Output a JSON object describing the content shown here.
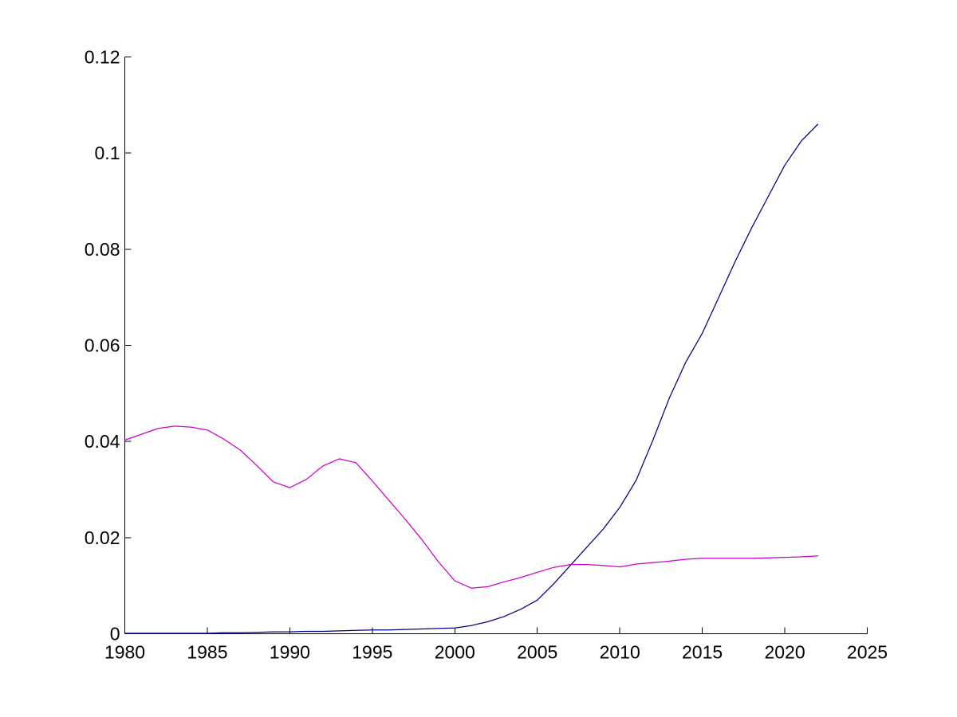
{
  "figure": {
    "background_color": "#ffffff",
    "axis_color": "#000000",
    "tick_label_color": "#000000"
  },
  "chart_data": {
    "type": "line",
    "title": "",
    "xlabel": "",
    "ylabel": "",
    "xlim": [
      1980,
      2025
    ],
    "ylim": [
      0,
      0.12
    ],
    "grid": false,
    "legend": "none",
    "x_ticks": [
      1980,
      1985,
      1990,
      1995,
      2000,
      2005,
      2010,
      2015,
      2020,
      2025
    ],
    "x_tick_labels": [
      "1980",
      "1985",
      "1990",
      "1995",
      "2000",
      "2005",
      "2010",
      "2015",
      "2020",
      "2025"
    ],
    "y_ticks": [
      0,
      0.02,
      0.04,
      0.06,
      0.08,
      0.1,
      0.12
    ],
    "y_tick_labels": [
      "0",
      "0.02",
      "0.04",
      "0.06",
      "0.08",
      "0.1",
      "0.12"
    ],
    "x": [
      1980,
      1981,
      1982,
      1983,
      1984,
      1985,
      1986,
      1987,
      1988,
      1989,
      1990,
      1991,
      1992,
      1993,
      1994,
      1995,
      1996,
      1997,
      1998,
      1999,
      2000,
      2001,
      2002,
      2003,
      2004,
      2005,
      2006,
      2007,
      2008,
      2009,
      2010,
      2011,
      2012,
      2013,
      2014,
      2015,
      2016,
      2017,
      2018,
      2019,
      2020,
      2021,
      2022
    ],
    "series": [
      {
        "name": "blue",
        "color": "#000080",
        "values": [
          0.0001,
          0.0001,
          0.0001,
          0.0001,
          0.0001,
          0.0001,
          0.0002,
          0.0002,
          0.0003,
          0.0004,
          0.0004,
          0.0005,
          0.0005,
          0.0006,
          0.0007,
          0.0008,
          0.0008,
          0.0009,
          0.001,
          0.0011,
          0.0012,
          0.0017,
          0.0025,
          0.0036,
          0.0051,
          0.007,
          0.0104,
          0.0142,
          0.018,
          0.0218,
          0.0263,
          0.032,
          0.0402,
          0.049,
          0.0565,
          0.0625,
          0.07,
          0.0775,
          0.0845,
          0.091,
          0.0975,
          0.1025,
          0.106
        ]
      },
      {
        "name": "magenta",
        "color": "#CC00CC",
        "values": [
          0.0403,
          0.0415,
          0.0427,
          0.0432,
          0.043,
          0.0424,
          0.0405,
          0.0382,
          0.035,
          0.0316,
          0.0304,
          0.0321,
          0.0349,
          0.0364,
          0.0356,
          0.0318,
          0.0278,
          0.0238,
          0.0196,
          0.015,
          0.011,
          0.0095,
          0.0098,
          0.0108,
          0.0117,
          0.0128,
          0.0138,
          0.0144,
          0.0144,
          0.0142,
          0.0139,
          0.0145,
          0.0148,
          0.0151,
          0.0155,
          0.0157,
          0.0157,
          0.0157,
          0.0157,
          0.0158,
          0.0159,
          0.016,
          0.0162
        ]
      }
    ]
  }
}
